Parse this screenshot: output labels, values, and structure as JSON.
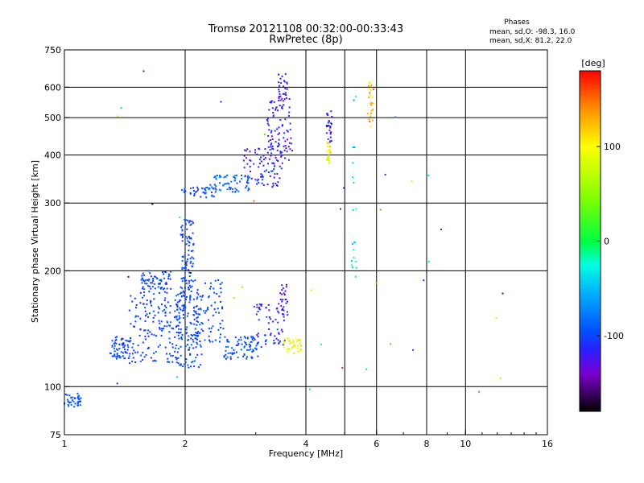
{
  "chart_data": {
    "type": "scatter",
    "title": "Tromsø 20121108 00:32:00-00:33:43",
    "subtitle": "RwPretec (8p)",
    "xlabel": "Frequency [MHz]",
    "ylabel": "Stationary phase Virtual Height [km]",
    "x_scale": "log",
    "y_scale": "log",
    "xlim": [
      1,
      16
    ],
    "ylim": [
      75,
      750
    ],
    "x_ticks": [
      {
        "value": 1,
        "label": "1"
      },
      {
        "value": 2,
        "label": "2"
      },
      {
        "value": 4,
        "label": "4"
      },
      {
        "value": 6,
        "label": "6"
      },
      {
        "value": 8,
        "label": "8"
      },
      {
        "value": 10,
        "label": "10"
      },
      {
        "value": 16,
        "label": "16"
      }
    ],
    "y_ticks": [
      {
        "value": 75,
        "label": "75"
      },
      {
        "value": 100,
        "label": "100"
      },
      {
        "value": 200,
        "label": "200"
      },
      {
        "value": 300,
        "label": "300"
      },
      {
        "value": 400,
        "label": "400"
      },
      {
        "value": 500,
        "label": "500"
      },
      {
        "value": 600,
        "label": "600"
      },
      {
        "value": 750,
        "label": "750"
      }
    ],
    "x_grid": [
      2,
      4,
      5,
      6,
      8,
      10
    ],
    "y_grid": [
      100,
      200,
      300,
      400,
      500,
      600
    ],
    "grid": true,
    "phase_info": {
      "heading": "Phases",
      "line_o": "mean, sd,O: -98.3, 16.0",
      "line_x": "mean, sd,X:  81.2, 22.0"
    },
    "colorbar": {
      "label": "[deg]",
      "range": [
        -180,
        180
      ],
      "ticks": [
        {
          "value": 100,
          "label": "100"
        },
        {
          "value": 0,
          "label": "0"
        },
        {
          "value": -100,
          "label": "-100"
        }
      ],
      "stops": [
        {
          "value": -180,
          "color": "#000000"
        },
        {
          "value": -140,
          "color": "#7a00d0"
        },
        {
          "value": -115,
          "color": "#2a20ff"
        },
        {
          "value": -95,
          "color": "#0050ff"
        },
        {
          "value": -55,
          "color": "#00b0ff"
        },
        {
          "value": -25,
          "color": "#00ffe0"
        },
        {
          "value": 0,
          "color": "#00ff40"
        },
        {
          "value": 45,
          "color": "#80ff00"
        },
        {
          "value": 100,
          "color": "#ffff00"
        },
        {
          "value": 140,
          "color": "#ff9000"
        },
        {
          "value": 180,
          "color": "#ff0000"
        }
      ]
    },
    "clusters": [
      {
        "name": "",
        "n": 40,
        "f": [
          1.0,
          1.1
        ],
        "h": [
          88,
          96
        ],
        "phase": [
          -105,
          -80
        ]
      },
      {
        "name": "",
        "n": 60,
        "f": [
          1.3,
          1.45
        ],
        "h": [
          118,
          135
        ],
        "phase": [
          -110,
          -90
        ]
      },
      {
        "name": "",
        "n": 160,
        "f": [
          1.45,
          1.95
        ],
        "h": [
          115,
          175
        ],
        "phase": [
          -115,
          -85
        ]
      },
      {
        "name": "",
        "n": 70,
        "f": [
          1.55,
          1.85
        ],
        "h": [
          175,
          200
        ],
        "phase": [
          -110,
          -90
        ]
      },
      {
        "name": "",
        "n": 150,
        "f": [
          1.9,
          2.2
        ],
        "h": [
          112,
          180
        ],
        "phase": [
          -110,
          -85
        ]
      },
      {
        "name": "",
        "n": 90,
        "f": [
          1.95,
          2.1
        ],
        "h": [
          180,
          275
        ],
        "phase": [
          -110,
          -85
        ]
      },
      {
        "name": "",
        "n": 70,
        "f": [
          2.1,
          2.5
        ],
        "h": [
          130,
          190
        ],
        "phase": [
          -110,
          -85
        ]
      },
      {
        "name": "",
        "n": 80,
        "f": [
          2.5,
          3.1
        ],
        "h": [
          118,
          135
        ],
        "phase": [
          -110,
          -80
        ]
      },
      {
        "name": "",
        "n": 60,
        "f": [
          3.0,
          3.55
        ],
        "h": [
          128,
          165
        ],
        "phase": [
          -135,
          -90
        ]
      },
      {
        "name": "",
        "n": 25,
        "f": [
          3.45,
          3.6
        ],
        "h": [
          150,
          185
        ],
        "phase": [
          -150,
          -110
        ]
      },
      {
        "name": "",
        "n": 40,
        "f": [
          3.5,
          3.9
        ],
        "h": [
          122,
          134
        ],
        "phase": [
          80,
          120
        ]
      },
      {
        "name": "",
        "n": 40,
        "f": [
          1.95,
          2.4
        ],
        "h": [
          310,
          330
        ],
        "phase": [
          -110,
          -85
        ]
      },
      {
        "name": "",
        "n": 60,
        "f": [
          2.3,
          2.9
        ],
        "h": [
          320,
          355
        ],
        "phase": [
          -105,
          -65
        ]
      },
      {
        "name": "",
        "n": 80,
        "f": [
          2.8,
          3.5
        ],
        "h": [
          330,
          420
        ],
        "phase": [
          -135,
          -95
        ]
      },
      {
        "name": "",
        "n": 90,
        "f": [
          3.2,
          3.7
        ],
        "h": [
          380,
          560
        ],
        "phase": [
          -140,
          -100
        ]
      },
      {
        "name": "",
        "n": 30,
        "f": [
          3.4,
          3.6
        ],
        "h": [
          550,
          650
        ],
        "phase": [
          -140,
          -105
        ]
      },
      {
        "name": "",
        "n": 25,
        "f": [
          4.5,
          4.6
        ],
        "h": [
          380,
          430
        ],
        "phase": [
          70,
          130
        ]
      },
      {
        "name": "",
        "n": 30,
        "f": [
          4.5,
          4.65
        ],
        "h": [
          430,
          520
        ],
        "phase": [
          -135,
          -100
        ]
      },
      {
        "name": "",
        "n": 25,
        "f": [
          5.7,
          5.9
        ],
        "h": [
          470,
          620
        ],
        "phase": [
          80,
          160
        ]
      },
      {
        "name": "",
        "n": 20,
        "f": [
          5.2,
          5.35
        ],
        "h": [
          190,
          600
        ],
        "phase": [
          -60,
          -20
        ]
      },
      {
        "name": "",
        "n": 40,
        "f": [
          1.2,
          14.0
        ],
        "h": [
          78,
          700
        ],
        "phase": [
          -180,
          180
        ]
      }
    ]
  }
}
